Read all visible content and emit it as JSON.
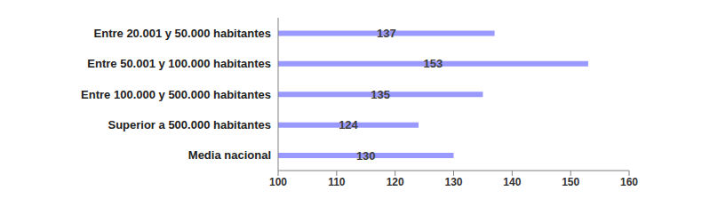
{
  "chart_data": {
    "type": "bar",
    "orientation": "horizontal",
    "categories": [
      "Entre 20.001 y 50.000 habitantes",
      "Entre 50.001 y 100.000 habitantes",
      "Entre 100.000 y 500.000 habitantes",
      "Superior a 500.000 habitantes",
      "Media nacional"
    ],
    "values": [
      137,
      153,
      135,
      124,
      130
    ],
    "color": "#9999ff",
    "xlim": [
      100,
      160
    ],
    "xticks": [
      100,
      110,
      120,
      130,
      140,
      150,
      160
    ],
    "grid": false,
    "data_labels": true
  }
}
